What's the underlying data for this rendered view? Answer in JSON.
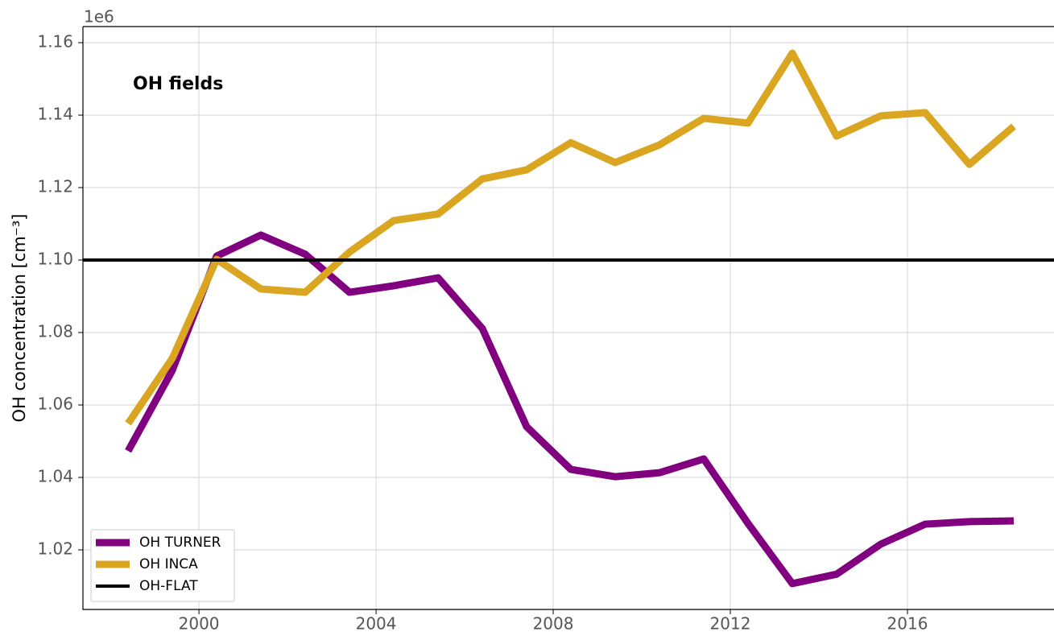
{
  "chart_data": {
    "type": "line",
    "annotation": "OH fields",
    "y_offset_label": "1e6",
    "ylabel": "OH concentration [cm⁻³]",
    "x": [
      1998.4,
      1999.4,
      2000.4,
      2001.4,
      2002.4,
      2003.4,
      2004.4,
      2005.4,
      2006.4,
      2007.4,
      2008.4,
      2009.4,
      2010.4,
      2011.4,
      2012.4,
      2013.4,
      2014.4,
      2015.4,
      2016.4,
      2017.4,
      2018.4
    ],
    "series": [
      {
        "name": "OH TURNER",
        "color": "#800080",
        "values": [
          1.0473,
          1.0696,
          1.1011,
          1.1069,
          1.1016,
          1.0911,
          1.0929,
          1.0951,
          1.0811,
          1.054,
          1.0422,
          1.0402,
          1.0413,
          1.0451,
          1.0273,
          1.0107,
          1.0133,
          1.0216,
          1.0271,
          1.0278,
          1.028
        ]
      },
      {
        "name": "OH INCA",
        "color": "#daa520",
        "values": [
          1.0549,
          1.0729,
          1.1002,
          1.092,
          1.0911,
          1.1022,
          1.1109,
          1.1127,
          1.1224,
          1.1249,
          1.1324,
          1.1269,
          1.1318,
          1.1391,
          1.1378,
          1.1571,
          1.1342,
          1.1398,
          1.1407,
          1.1264,
          1.1369
        ]
      },
      {
        "name": "OH-FLAT",
        "color": "#000000",
        "hline": 1.1
      }
    ],
    "xlim": [
      1997.38,
      2019.31
    ],
    "ylim": [
      1.00356,
      1.16444
    ],
    "xticks": [
      2000,
      2004,
      2008,
      2012,
      2016
    ],
    "yticks": [
      1.02,
      1.04,
      1.06,
      1.08,
      {
        "value": 1.1,
        "label": "1.10"
      },
      1.12,
      1.14,
      1.16
    ],
    "grid": true,
    "legend": "lower left"
  }
}
